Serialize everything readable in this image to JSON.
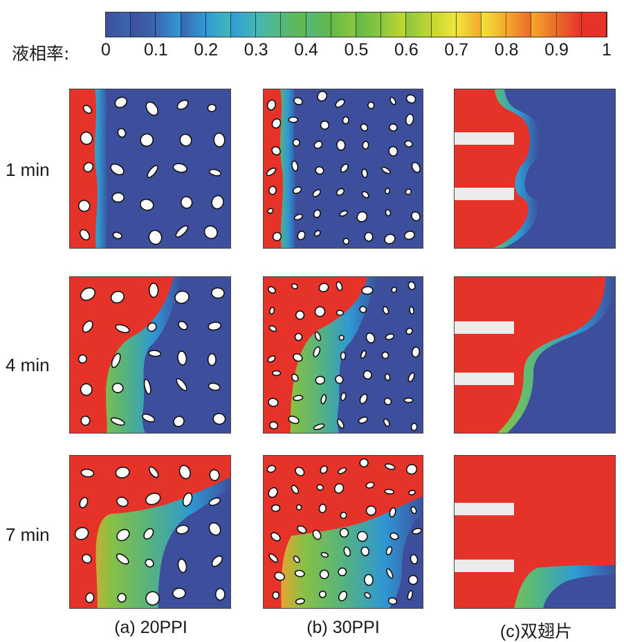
{
  "legend": {
    "label": "液相率:",
    "ticks": [
      "0",
      "0.1",
      "0.2",
      "0.3",
      "0.4",
      "0.5",
      "0.6",
      "0.7",
      "0.8",
      "0.9",
      "1"
    ]
  },
  "rows": [
    {
      "label": "1 min"
    },
    {
      "label": "4 min"
    },
    {
      "label": "7 min"
    }
  ],
  "columns": [
    {
      "label": "(a) 20PPI"
    },
    {
      "label": "(b) 30PPI"
    },
    {
      "label": "(c)双翅片"
    }
  ],
  "colors": {
    "solid": "#3d4f9c",
    "liquid": "#e5332a",
    "foam": "#ffffff",
    "fin": "#ececec",
    "colormap": [
      "#3d4f9c",
      "#3a66b0",
      "#2f9bd6",
      "#43b7b5",
      "#56b87e",
      "#62b946",
      "#8cc63f",
      "#c3d630",
      "#f0e53c",
      "#f5a82c",
      "#ec6a2a",
      "#e5332a"
    ]
  }
}
